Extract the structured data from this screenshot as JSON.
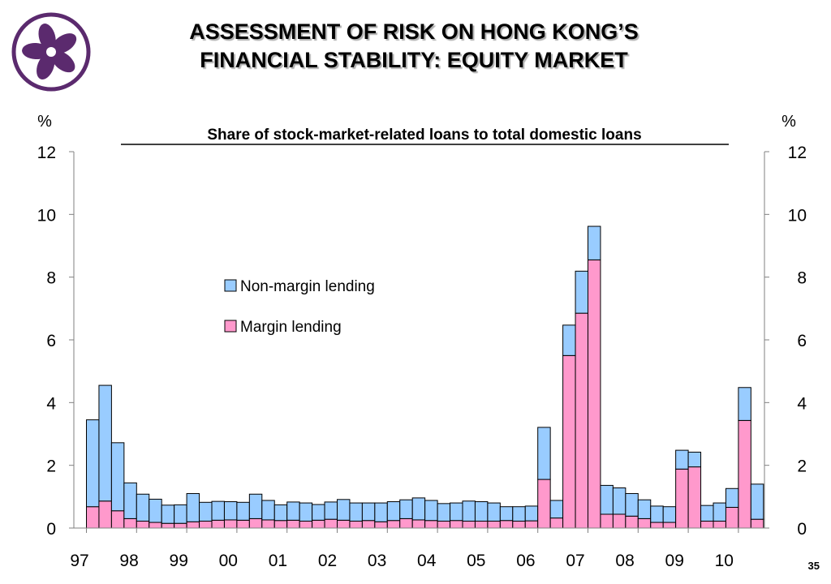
{
  "header": {
    "title_line1": "ASSESSMENT OF RISK ON HONG KONG’S",
    "title_line2": "FINANCIAL STABILITY: EQUITY MARKET",
    "logo_icon": "bauhinia-flower-icon",
    "logo_color": "#5b2a6e"
  },
  "page_number": "35",
  "colors": {
    "non_margin": "#99ccff",
    "margin": "#ff99cc",
    "bar_stroke": "#000000",
    "axis": "#808080"
  },
  "chart_data": {
    "type": "bar",
    "stacked": true,
    "title": "Share of stock-market-related loans to total domestic loans",
    "ylabel_left": "%",
    "ylabel_right": "%",
    "ylim": [
      0,
      12
    ],
    "yticks": [
      0,
      2,
      4,
      6,
      8,
      10,
      12
    ],
    "year_labels": [
      "97",
      "98",
      "99",
      "00",
      "01",
      "02",
      "03",
      "04",
      "05",
      "06",
      "07",
      "08",
      "09",
      "10"
    ],
    "legend": {
      "placement": "center-left",
      "entries": [
        "Non-margin lending",
        "Margin lending"
      ]
    },
    "series": [
      {
        "name": "Margin lending",
        "color": "#ff99cc",
        "values": [
          0.68,
          0.86,
          0.55,
          0.3,
          0.22,
          0.18,
          0.15,
          0.15,
          0.2,
          0.22,
          0.25,
          0.26,
          0.25,
          0.3,
          0.26,
          0.24,
          0.25,
          0.22,
          0.25,
          0.28,
          0.25,
          0.22,
          0.24,
          0.2,
          0.24,
          0.3,
          0.26,
          0.24,
          0.22,
          0.24,
          0.22,
          0.22,
          0.22,
          0.24,
          0.22,
          0.23,
          1.55,
          0.32,
          5.5,
          6.85,
          8.55,
          0.44,
          0.44,
          0.38,
          0.3,
          0.18,
          0.18,
          1.88,
          1.95,
          0.22,
          0.22,
          0.66,
          3.43,
          0.28
        ]
      },
      {
        "name": "Non-margin lending",
        "color": "#99ccff",
        "values": [
          2.77,
          3.69,
          2.17,
          1.14,
          0.86,
          0.74,
          0.58,
          0.59,
          0.9,
          0.6,
          0.6,
          0.58,
          0.57,
          0.78,
          0.62,
          0.5,
          0.58,
          0.58,
          0.5,
          0.55,
          0.66,
          0.58,
          0.56,
          0.6,
          0.6,
          0.6,
          0.7,
          0.64,
          0.56,
          0.56,
          0.64,
          0.62,
          0.58,
          0.44,
          0.46,
          0.47,
          1.66,
          0.56,
          0.97,
          1.34,
          1.07,
          0.92,
          0.84,
          0.72,
          0.6,
          0.52,
          0.5,
          0.6,
          0.47,
          0.5,
          0.58,
          0.6,
          1.05,
          1.12
        ]
      }
    ]
  }
}
